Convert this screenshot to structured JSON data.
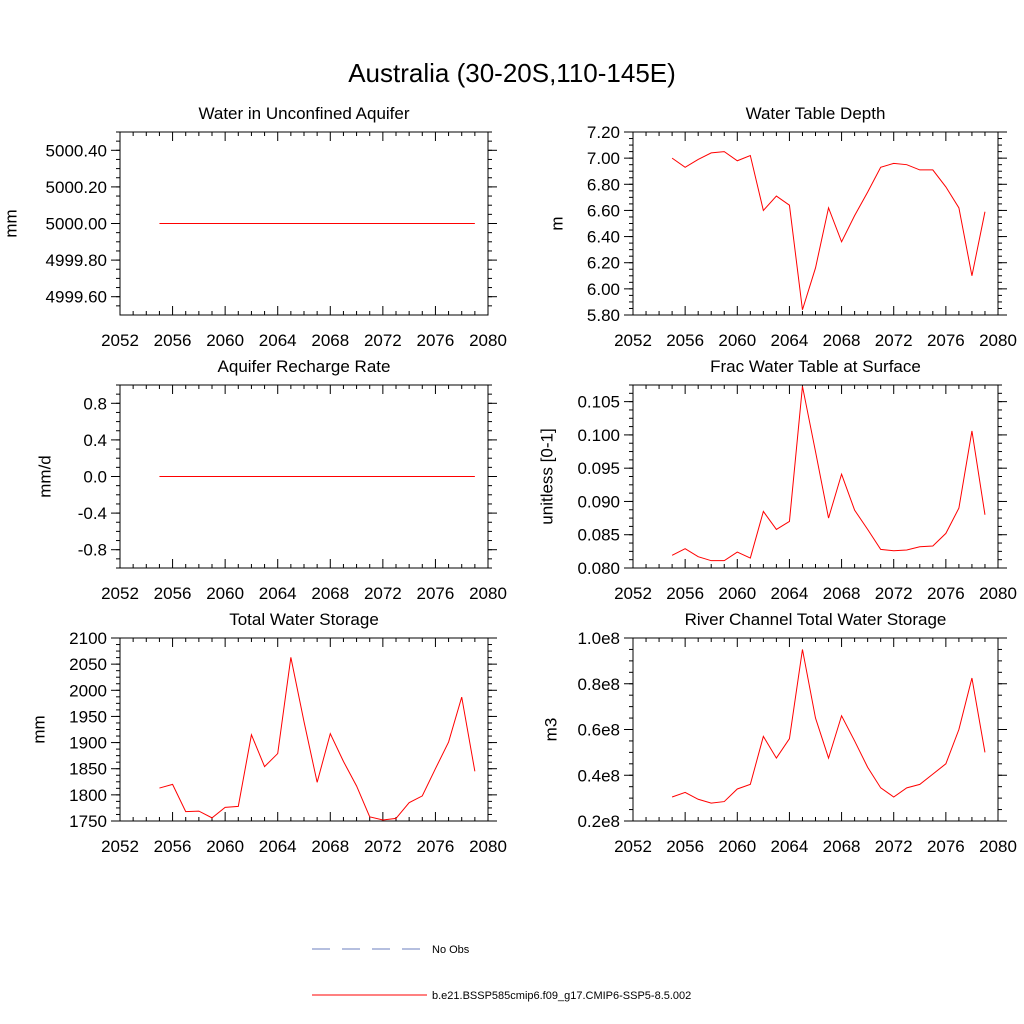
{
  "figure_title": "Australia (30-20S,110-145E)",
  "legend": {
    "obs_label": "No Obs",
    "model_label": "b.e21.BSSP585cmip6.f09_g17.CMIP6-SSP5-8.5.002",
    "obs_color": "#6b7fbf",
    "model_color": "#ff0000"
  },
  "chart_data": [
    {
      "type": "line",
      "title": "Water in Unconfined Aquifer",
      "ylabel": "mm",
      "xlim": [
        2052,
        2080
      ],
      "ylim": [
        4999.5,
        5000.5
      ],
      "xticks": [
        "2052",
        "2056",
        "2060",
        "2064",
        "2068",
        "2072",
        "2076",
        "2080"
      ],
      "yticks": [
        4999.6,
        4999.8,
        5000.0,
        5000.2,
        5000.4
      ],
      "ytick_labels": [
        "4999.60",
        "4999.80",
        "5000.00",
        "5000.20",
        "5000.40"
      ],
      "x": [
        2055,
        2056,
        2057,
        2058,
        2059,
        2060,
        2061,
        2062,
        2063,
        2064,
        2065,
        2066,
        2067,
        2068,
        2069,
        2070,
        2071,
        2072,
        2073,
        2074,
        2075,
        2076,
        2077,
        2078,
        2079
      ],
      "series": [
        {
          "values": [
            5000,
            5000,
            5000,
            5000,
            5000,
            5000,
            5000,
            5000,
            5000,
            5000,
            5000,
            5000,
            5000,
            5000,
            5000,
            5000,
            5000,
            5000,
            5000,
            5000,
            5000,
            5000,
            5000,
            5000,
            5000
          ]
        }
      ]
    },
    {
      "type": "line",
      "title": "Water Table Depth",
      "ylabel": "m",
      "xlim": [
        2052,
        2080
      ],
      "ylim": [
        5.8,
        7.2
      ],
      "xticks": [
        "2052",
        "2056",
        "2060",
        "2064",
        "2068",
        "2072",
        "2076",
        "2080"
      ],
      "yticks": [
        5.8,
        6.0,
        6.2,
        6.4,
        6.6,
        6.8,
        7.0,
        7.2
      ],
      "ytick_labels": [
        "5.80",
        "6.00",
        "6.20",
        "6.40",
        "6.60",
        "6.80",
        "7.00",
        "7.20"
      ],
      "x": [
        2055,
        2056,
        2057,
        2058,
        2059,
        2060,
        2061,
        2062,
        2063,
        2064,
        2065,
        2066,
        2067,
        2068,
        2069,
        2070,
        2071,
        2072,
        2073,
        2074,
        2075,
        2076,
        2077,
        2078,
        2079
      ],
      "series": [
        {
          "values": [
            7.0,
            6.93,
            6.99,
            7.04,
            7.05,
            6.98,
            7.02,
            6.6,
            6.71,
            6.64,
            5.84,
            6.16,
            6.62,
            6.36,
            6.56,
            6.74,
            6.93,
            6.96,
            6.95,
            6.91,
            6.91,
            6.78,
            6.62,
            6.1,
            6.59
          ]
        }
      ]
    },
    {
      "type": "line",
      "title": "Aquifer Recharge Rate",
      "ylabel": "mm/d",
      "xlim": [
        2052,
        2080
      ],
      "ylim": [
        -1.0,
        1.0
      ],
      "xticks": [
        "2052",
        "2056",
        "2060",
        "2064",
        "2068",
        "2072",
        "2076",
        "2080"
      ],
      "yticks": [
        -0.8,
        -0.4,
        0.0,
        0.4,
        0.8
      ],
      "ytick_labels": [
        "-0.8",
        "-0.4",
        "0.0",
        "0.4",
        "0.8"
      ],
      "x": [
        2055,
        2056,
        2057,
        2058,
        2059,
        2060,
        2061,
        2062,
        2063,
        2064,
        2065,
        2066,
        2067,
        2068,
        2069,
        2070,
        2071,
        2072,
        2073,
        2074,
        2075,
        2076,
        2077,
        2078,
        2079
      ],
      "series": [
        {
          "values": [
            0,
            0,
            0,
            0,
            0,
            0,
            0,
            0,
            0,
            0,
            0,
            0,
            0,
            0,
            0,
            0,
            0,
            0,
            0,
            0,
            0,
            0,
            0,
            0,
            0
          ]
        }
      ]
    },
    {
      "type": "line",
      "title": "Frac Water Table at Surface",
      "ylabel": "unitless [0-1]",
      "xlim": [
        2052,
        2080
      ],
      "ylim": [
        0.08,
        0.1075
      ],
      "xticks": [
        "2052",
        "2056",
        "2060",
        "2064",
        "2068",
        "2072",
        "2076",
        "2080"
      ],
      "yticks": [
        0.08,
        0.085,
        0.09,
        0.095,
        0.1,
        0.105
      ],
      "ytick_labels": [
        "0.080",
        "0.085",
        "0.090",
        "0.095",
        "0.100",
        "0.105"
      ],
      "x": [
        2055,
        2056,
        2057,
        2058,
        2059,
        2060,
        2061,
        2062,
        2063,
        2064,
        2065,
        2066,
        2067,
        2068,
        2069,
        2070,
        2071,
        2072,
        2073,
        2074,
        2075,
        2076,
        2077,
        2078,
        2079
      ],
      "series": [
        {
          "values": [
            0.0819,
            0.0829,
            0.0817,
            0.0811,
            0.0811,
            0.0824,
            0.0815,
            0.0885,
            0.0858,
            0.087,
            0.1073,
            0.0975,
            0.0875,
            0.0941,
            0.0887,
            0.0858,
            0.0828,
            0.0826,
            0.0827,
            0.0832,
            0.0833,
            0.0852,
            0.089,
            0.1006,
            0.088
          ]
        }
      ]
    },
    {
      "type": "line",
      "title": "Total Water Storage",
      "ylabel": "mm",
      "xlim": [
        2052,
        2080
      ],
      "ylim": [
        1750,
        2100
      ],
      "xticks": [
        "2052",
        "2056",
        "2060",
        "2064",
        "2068",
        "2072",
        "2076",
        "2080"
      ],
      "yticks": [
        1750,
        1800,
        1850,
        1900,
        1950,
        2000,
        2050,
        2100
      ],
      "ytick_labels": [
        "1750",
        "1800",
        "1850",
        "1900",
        "1950",
        "2000",
        "2050",
        "2100"
      ],
      "x": [
        2055,
        2056,
        2057,
        2058,
        2059,
        2060,
        2061,
        2062,
        2063,
        2064,
        2065,
        2066,
        2067,
        2068,
        2069,
        2070,
        2071,
        2072,
        2073,
        2074,
        2075,
        2076,
        2077,
        2078,
        2079
      ],
      "series": [
        {
          "values": [
            1813,
            1820,
            1768,
            1769,
            1756,
            1776,
            1778,
            1915,
            1854,
            1879,
            2063,
            1940,
            1824,
            1917,
            1864,
            1817,
            1758,
            1752,
            1755,
            1785,
            1798,
            1850,
            1901,
            1987,
            1845
          ]
        }
      ]
    },
    {
      "type": "line",
      "title": "River Channel Total Water Storage",
      "ylabel": "m3",
      "xlim": [
        2052,
        2080
      ],
      "ylim": [
        20000000,
        100000000
      ],
      "xticks": [
        "2052",
        "2056",
        "2060",
        "2064",
        "2068",
        "2072",
        "2076",
        "2080"
      ],
      "yticks": [
        20000000,
        40000000,
        60000000,
        80000000,
        100000000
      ],
      "ytick_labels": [
        "0.2e8",
        "0.4e8",
        "0.6e8",
        "0.8e8",
        "1.0e8"
      ],
      "x": [
        2055,
        2056,
        2057,
        2058,
        2059,
        2060,
        2061,
        2062,
        2063,
        2064,
        2065,
        2066,
        2067,
        2068,
        2069,
        2070,
        2071,
        2072,
        2073,
        2074,
        2075,
        2076,
        2077,
        2078,
        2079
      ],
      "series": [
        {
          "values": [
            30500000,
            32500000,
            29500000,
            27800000,
            28500000,
            34000000,
            36000000,
            57000000,
            47500000,
            56000000,
            95000000,
            65000000,
            47500000,
            66000000,
            55000000,
            43500000,
            34500000,
            30500000,
            34500000,
            36000000,
            40500000,
            45000000,
            60000000,
            82500000,
            50000000
          ]
        }
      ]
    }
  ]
}
